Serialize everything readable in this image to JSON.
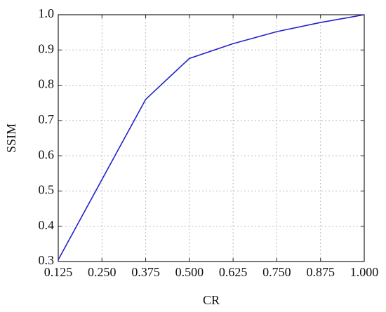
{
  "chart_data": {
    "type": "line",
    "xlabel": "CR",
    "ylabel": "SSIM",
    "x": [
      0.125,
      0.375,
      0.5,
      0.625,
      0.75,
      0.875,
      1.0
    ],
    "series": [
      {
        "name": "SSIM",
        "color": "#2222cc",
        "values": [
          0.305,
          0.76,
          0.876,
          0.918,
          0.952,
          0.978,
          1.0
        ]
      }
    ],
    "xlim": [
      0.125,
      1.0
    ],
    "xticks": [
      0.125,
      {
        "value": 0.25,
        "label": "0.250"
      },
      0.375,
      {
        "value": 0.5,
        "label": "0.500"
      },
      0.625,
      {
        "value": 0.75,
        "label": "0.750"
      },
      0.875,
      {
        "value": 1.0,
        "label": "1.000"
      }
    ],
    "ylim": [
      0.3,
      1.0
    ],
    "yticks": [
      0.3,
      0.4,
      0.5,
      0.6,
      0.7,
      0.8,
      0.9,
      {
        "value": 1.0,
        "label": "1.0"
      }
    ],
    "grid": true
  }
}
